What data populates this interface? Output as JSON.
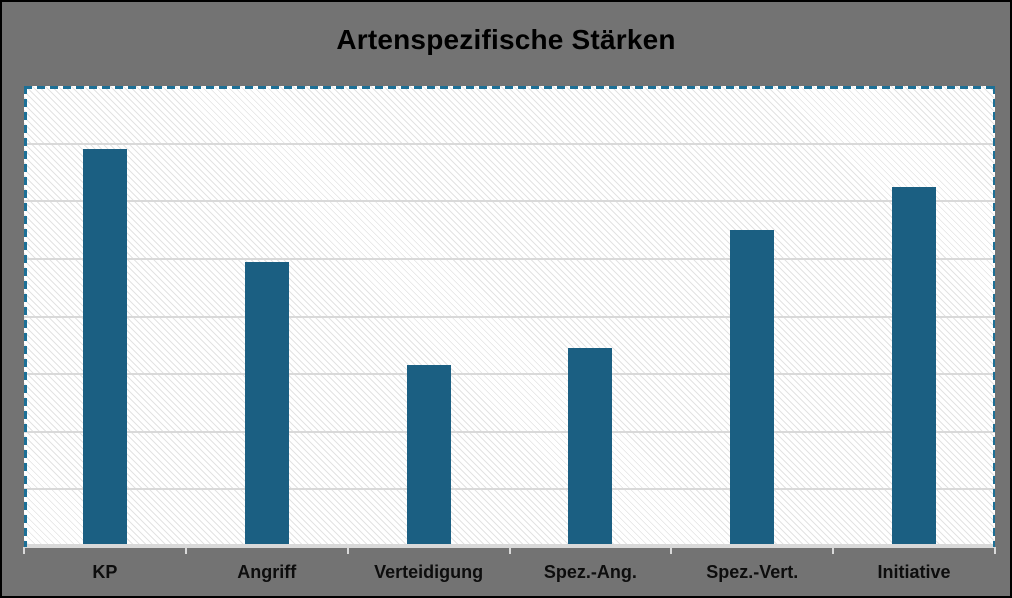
{
  "window": {
    "title": "Artenspezifische Stärken"
  },
  "chart_data": {
    "type": "bar",
    "title": "Artenspezifische Stärken",
    "categories": [
      "KP",
      "Angriff",
      "Verteidigung",
      "Spez.-Ang.",
      "Spez.-Vert.",
      "Initiative"
    ],
    "values": [
      138,
      99,
      63,
      69,
      110,
      125
    ],
    "xlabel": "",
    "ylabel": "",
    "ylim": [
      0,
      160
    ],
    "gridline_step": 20,
    "grid": true,
    "legend": "none",
    "y_tick_labels": "none",
    "plot_area_selected": true
  },
  "colors": {
    "bar": "#1b5f82",
    "selection_dash": "#1d7096",
    "chart_background": "#737373",
    "plot_fill": "#ffffff",
    "gridline": "#d9d9d9",
    "axis_line": "#d9d9d9",
    "title_text": "#000000",
    "label_text": "#0d0d0d"
  }
}
